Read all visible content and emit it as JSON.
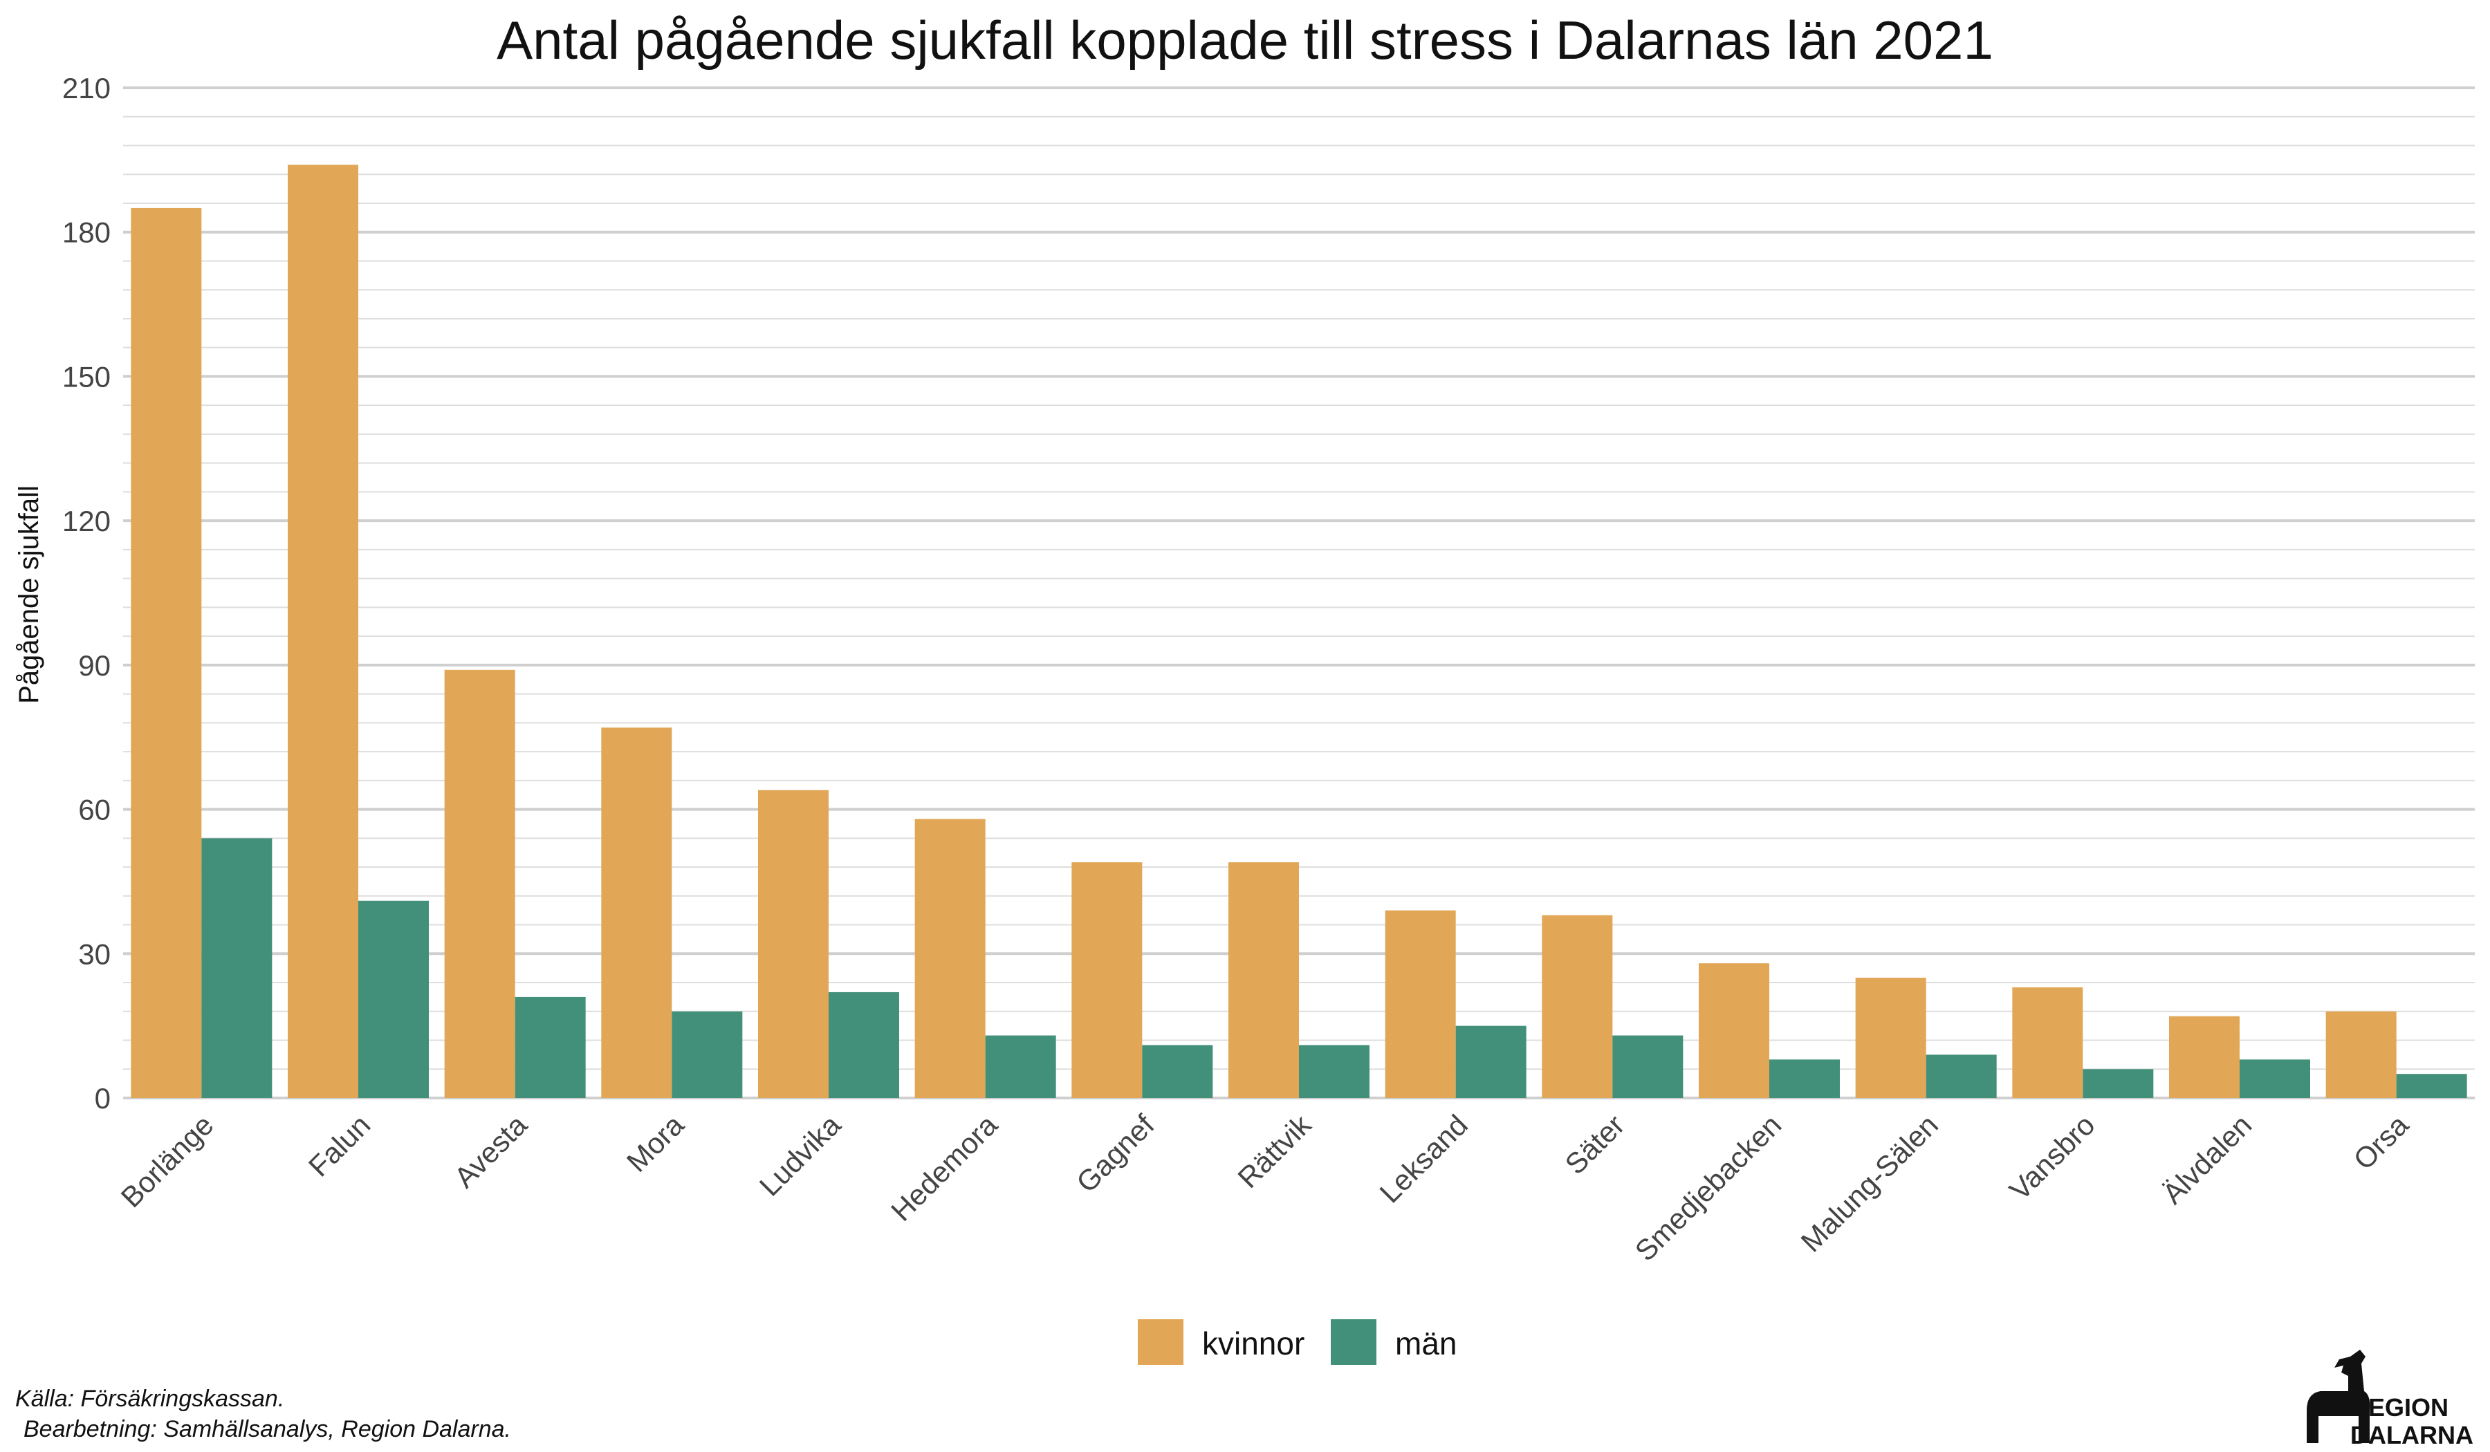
{
  "colors": {
    "kvinnor": "#E2A756",
    "man": "#43907A",
    "grid_major": "#CFCFCF",
    "grid_minor": "#DEDEDE"
  },
  "caption": {
    "line1": "Källa: Försäkringskassan.",
    "line2": "Bearbetning: Samhällsanalys, Region Dalarna."
  },
  "logo": {
    "line1": "REGION",
    "line2": "DALARNA"
  },
  "chart_data": {
    "type": "bar",
    "title": "Antal pågående sjukfall kopplade till stress i Dalarnas län 2021",
    "xlabel": "",
    "ylabel": "Pågående sjukfall",
    "ylim": [
      0,
      210
    ],
    "yticks": [
      0,
      30,
      60,
      90,
      120,
      150,
      180,
      210
    ],
    "grid": true,
    "legend_position": "bottom",
    "categories": [
      "Borlänge",
      "Falun",
      "Avesta",
      "Mora",
      "Ludvika",
      "Hedemora",
      "Gagnef",
      "Rättvik",
      "Leksand",
      "Säter",
      "Smedjebacken",
      "Malung-Sälen",
      "Vansbro",
      "Älvdalen",
      "Orsa"
    ],
    "series": [
      {
        "name": "kvinnor",
        "values": [
          185,
          194,
          89,
          77,
          64,
          58,
          49,
          49,
          39,
          38,
          28,
          25,
          23,
          17,
          18
        ]
      },
      {
        "name": "män",
        "values": [
          54,
          41,
          21,
          18,
          22,
          13,
          11,
          11,
          15,
          13,
          8,
          9,
          6,
          8,
          5
        ]
      }
    ]
  }
}
